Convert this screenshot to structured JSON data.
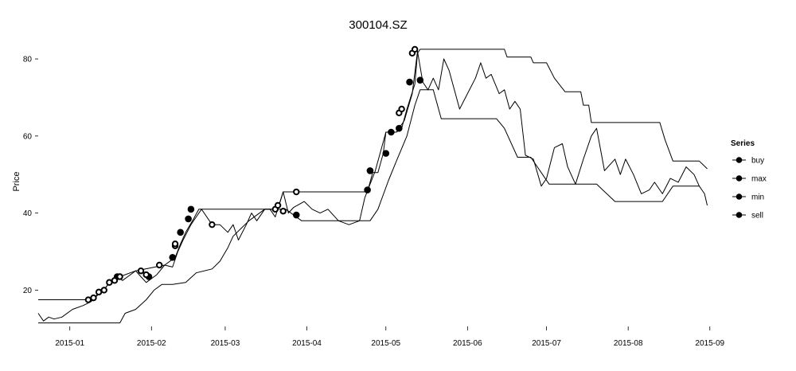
{
  "chart_data": {
    "type": "line",
    "title": "300104.SZ",
    "xlabel": "",
    "ylabel": "Price",
    "xlim": [
      "2014-12-20",
      "2015-09-05"
    ],
    "ylim": [
      11,
      86
    ],
    "y_ticks": [
      20,
      40,
      60,
      80
    ],
    "x_ticks": [
      "2015-01",
      "2015-02",
      "2015-03",
      "2015-04",
      "2015-05",
      "2015-06",
      "2015-07",
      "2015-08",
      "2015-09"
    ],
    "grid": false,
    "legend": {
      "title": "Series",
      "position": "right",
      "entries": [
        "buy",
        "max",
        "min",
        "sell"
      ]
    },
    "series": [
      {
        "name": "max",
        "points": [
          [
            "2014-12-20",
            17.5
          ],
          [
            "2015-01-10",
            17.5
          ],
          [
            "2015-01-12",
            19.5
          ],
          [
            "2015-01-14",
            20
          ],
          [
            "2015-01-16",
            22
          ],
          [
            "2015-01-20",
            23.5
          ],
          [
            "2015-01-26",
            25
          ],
          [
            "2015-02-06",
            26.5
          ],
          [
            "2015-02-10",
            28.5
          ],
          [
            "2015-02-12",
            32
          ],
          [
            "2015-02-14",
            35
          ],
          [
            "2015-02-17",
            38.5
          ],
          [
            "2015-02-19",
            41
          ],
          [
            "2015-03-21",
            41
          ],
          [
            "2015-03-23",
            45.5
          ],
          [
            "2015-04-24",
            45.5
          ],
          [
            "2015-04-26",
            50.5
          ],
          [
            "2015-04-28",
            50.5
          ],
          [
            "2015-04-30",
            55.5
          ],
          [
            "2015-05-01",
            61
          ],
          [
            "2015-05-05",
            61
          ],
          [
            "2015-05-07",
            62
          ],
          [
            "2015-05-09",
            67
          ],
          [
            "2015-05-12",
            73.5
          ],
          [
            "2015-05-13",
            81.5
          ],
          [
            "2015-05-14",
            82.5
          ],
          [
            "2015-06-10",
            82.5
          ],
          [
            "2015-06-15",
            82.5
          ],
          [
            "2015-06-16",
            80.5
          ],
          [
            "2015-06-25",
            80.5
          ],
          [
            "2015-06-26",
            79
          ],
          [
            "2015-07-01",
            79
          ],
          [
            "2015-07-04",
            75
          ],
          [
            "2015-07-08",
            71.5
          ],
          [
            "2015-07-14",
            71.5
          ],
          [
            "2015-07-15",
            68
          ],
          [
            "2015-07-17",
            68
          ],
          [
            "2015-07-18",
            63.5
          ],
          [
            "2015-08-13",
            63.5
          ],
          [
            "2015-08-15",
            59
          ],
          [
            "2015-08-18",
            53.5
          ],
          [
            "2015-08-28",
            53.5
          ],
          [
            "2015-08-31",
            51.5
          ]
        ]
      },
      {
        "name": "min",
        "points": [
          [
            "2014-12-20",
            11.5
          ],
          [
            "2015-01-20",
            11.5
          ],
          [
            "2015-01-22",
            14
          ],
          [
            "2015-01-26",
            15
          ],
          [
            "2015-01-30",
            17.5
          ],
          [
            "2015-02-02",
            20
          ],
          [
            "2015-02-05",
            21.5
          ],
          [
            "2015-02-09",
            21.5
          ],
          [
            "2015-02-14",
            22
          ],
          [
            "2015-02-18",
            24.5
          ],
          [
            "2015-02-24",
            25.5
          ],
          [
            "2015-02-27",
            27.5
          ],
          [
            "2015-03-02",
            31
          ],
          [
            "2015-03-04",
            34
          ],
          [
            "2015-03-07",
            36
          ],
          [
            "2015-03-10",
            38
          ],
          [
            "2015-03-16",
            41
          ],
          [
            "2015-03-24",
            41
          ],
          [
            "2015-03-30",
            38
          ],
          [
            "2015-04-25",
            38
          ],
          [
            "2015-04-28",
            41
          ],
          [
            "2015-05-02",
            48.5
          ],
          [
            "2015-05-05",
            53.5
          ],
          [
            "2015-05-09",
            60
          ],
          [
            "2015-05-12",
            68
          ],
          [
            "2015-05-14",
            72
          ],
          [
            "2015-05-19",
            72
          ],
          [
            "2015-05-22",
            64.5
          ],
          [
            "2015-06-12",
            64.5
          ],
          [
            "2015-06-15",
            62
          ],
          [
            "2015-06-20",
            54.5
          ],
          [
            "2015-06-25",
            54.5
          ],
          [
            "2015-07-02",
            47.5
          ],
          [
            "2015-07-16",
            47.5
          ],
          [
            "2015-07-20",
            47.5
          ],
          [
            "2015-07-27",
            43
          ],
          [
            "2015-08-14",
            43
          ],
          [
            "2015-08-18",
            47
          ],
          [
            "2015-08-28",
            47
          ]
        ]
      },
      {
        "name": "price",
        "points": [
          [
            "2014-12-20",
            14
          ],
          [
            "2014-12-22",
            12
          ],
          [
            "2014-12-24",
            13
          ],
          [
            "2014-12-26",
            12.5
          ],
          [
            "2014-12-29",
            13
          ],
          [
            "2015-01-02",
            15
          ],
          [
            "2015-01-06",
            16
          ],
          [
            "2015-01-09",
            17
          ],
          [
            "2015-01-12",
            19
          ],
          [
            "2015-01-14",
            20
          ],
          [
            "2015-01-16",
            22
          ],
          [
            "2015-01-19",
            23.5
          ],
          [
            "2015-01-21",
            22.5
          ],
          [
            "2015-01-23",
            23.5
          ],
          [
            "2015-01-26",
            25
          ],
          [
            "2015-01-28",
            23.5
          ],
          [
            "2015-01-30",
            22
          ],
          [
            "2015-02-03",
            24
          ],
          [
            "2015-02-06",
            26.5
          ],
          [
            "2015-02-09",
            26
          ],
          [
            "2015-02-11",
            30
          ],
          [
            "2015-02-13",
            33
          ],
          [
            "2015-02-16",
            37
          ],
          [
            "2015-02-18",
            39
          ],
          [
            "2015-02-20",
            41
          ],
          [
            "2015-02-24",
            37
          ],
          [
            "2015-02-27",
            37
          ],
          [
            "2015-03-02",
            35
          ],
          [
            "2015-03-04",
            37
          ],
          [
            "2015-03-06",
            33
          ],
          [
            "2015-03-09",
            37
          ],
          [
            "2015-03-11",
            40
          ],
          [
            "2015-03-13",
            38
          ],
          [
            "2015-03-16",
            41
          ],
          [
            "2015-03-18",
            41
          ],
          [
            "2015-03-20",
            39
          ],
          [
            "2015-03-23",
            45.5
          ],
          [
            "2015-03-25",
            40
          ],
          [
            "2015-03-27",
            41.5
          ],
          [
            "2015-03-31",
            43
          ],
          [
            "2015-04-03",
            41
          ],
          [
            "2015-04-06",
            40
          ],
          [
            "2015-04-09",
            41
          ],
          [
            "2015-04-13",
            38
          ],
          [
            "2015-04-17",
            37
          ],
          [
            "2015-04-21",
            38
          ],
          [
            "2015-04-23",
            44
          ],
          [
            "2015-04-27",
            51
          ],
          [
            "2015-05-01",
            61
          ],
          [
            "2015-05-05",
            61
          ],
          [
            "2015-05-08",
            64
          ],
          [
            "2015-05-11",
            71
          ],
          [
            "2015-05-13",
            82
          ],
          [
            "2015-05-15",
            74
          ],
          [
            "2015-05-17",
            72
          ],
          [
            "2015-05-19",
            75
          ],
          [
            "2015-05-21",
            72
          ],
          [
            "2015-05-23",
            80
          ],
          [
            "2015-05-25",
            77
          ],
          [
            "2015-05-29",
            67
          ],
          [
            "2015-06-01",
            71
          ],
          [
            "2015-06-04",
            75
          ],
          [
            "2015-06-06",
            79
          ],
          [
            "2015-06-08",
            75
          ],
          [
            "2015-06-10",
            76
          ],
          [
            "2015-06-13",
            71
          ],
          [
            "2015-06-15",
            72
          ],
          [
            "2015-06-17",
            67
          ],
          [
            "2015-06-19",
            69
          ],
          [
            "2015-06-21",
            67
          ],
          [
            "2015-06-23",
            55
          ],
          [
            "2015-06-26",
            54
          ],
          [
            "2015-06-29",
            47
          ],
          [
            "2015-07-01",
            49
          ],
          [
            "2015-07-04",
            57
          ],
          [
            "2015-07-07",
            58
          ],
          [
            "2015-07-09",
            52
          ],
          [
            "2015-07-12",
            47.5
          ],
          [
            "2015-07-15",
            54
          ],
          [
            "2015-07-18",
            60
          ],
          [
            "2015-07-20",
            62
          ],
          [
            "2015-07-23",
            51
          ],
          [
            "2015-07-27",
            54
          ],
          [
            "2015-07-29",
            50
          ],
          [
            "2015-07-31",
            54
          ],
          [
            "2015-08-03",
            50
          ],
          [
            "2015-08-06",
            45
          ],
          [
            "2015-08-09",
            46
          ],
          [
            "2015-08-11",
            48
          ],
          [
            "2015-08-14",
            45
          ],
          [
            "2015-08-17",
            49
          ],
          [
            "2015-08-20",
            48
          ],
          [
            "2015-08-23",
            52
          ],
          [
            "2015-08-26",
            50
          ],
          [
            "2015-08-28",
            47
          ],
          [
            "2015-08-29",
            46
          ],
          [
            "2015-08-30",
            45
          ],
          [
            "2015-08-31",
            42
          ]
        ]
      },
      {
        "name": "buy",
        "marker": "filled",
        "points": [
          [
            "2015-01-19",
            23.5
          ],
          [
            "2015-01-31",
            23.5
          ],
          [
            "2015-02-09",
            28.5
          ],
          [
            "2015-02-12",
            35
          ],
          [
            "2015-02-15",
            38.5
          ],
          [
            "2015-02-16",
            41
          ],
          [
            "2015-03-28",
            39.5
          ],
          [
            "2015-04-24",
            46
          ],
          [
            "2015-04-25",
            51
          ],
          [
            "2015-05-01",
            55.5
          ],
          [
            "2015-05-03",
            61
          ],
          [
            "2015-05-06",
            62
          ],
          [
            "2015-05-10",
            74
          ],
          [
            "2015-05-14",
            74.5
          ]
        ]
      },
      {
        "name": "sell",
        "marker": "open",
        "points": [
          [
            "2015-01-08",
            17.5
          ],
          [
            "2015-01-10",
            18
          ],
          [
            "2015-01-12",
            19.5
          ],
          [
            "2015-01-14",
            20
          ],
          [
            "2015-01-16",
            22
          ],
          [
            "2015-01-18",
            22.5
          ],
          [
            "2015-01-20",
            23.5
          ],
          [
            "2015-01-28",
            25
          ],
          [
            "2015-01-30",
            24
          ],
          [
            "2015-02-04",
            26.5
          ],
          [
            "2015-02-10",
            31.5
          ],
          [
            "2015-02-10",
            32
          ],
          [
            "2015-02-24",
            37
          ],
          [
            "2015-03-20",
            41
          ],
          [
            "2015-03-21",
            42
          ],
          [
            "2015-03-23",
            40.5
          ],
          [
            "2015-03-28",
            45.5
          ],
          [
            "2015-05-06",
            66
          ],
          [
            "2015-05-07",
            67
          ],
          [
            "2015-05-11",
            81.5
          ],
          [
            "2015-05-12",
            82.5
          ]
        ]
      }
    ]
  }
}
